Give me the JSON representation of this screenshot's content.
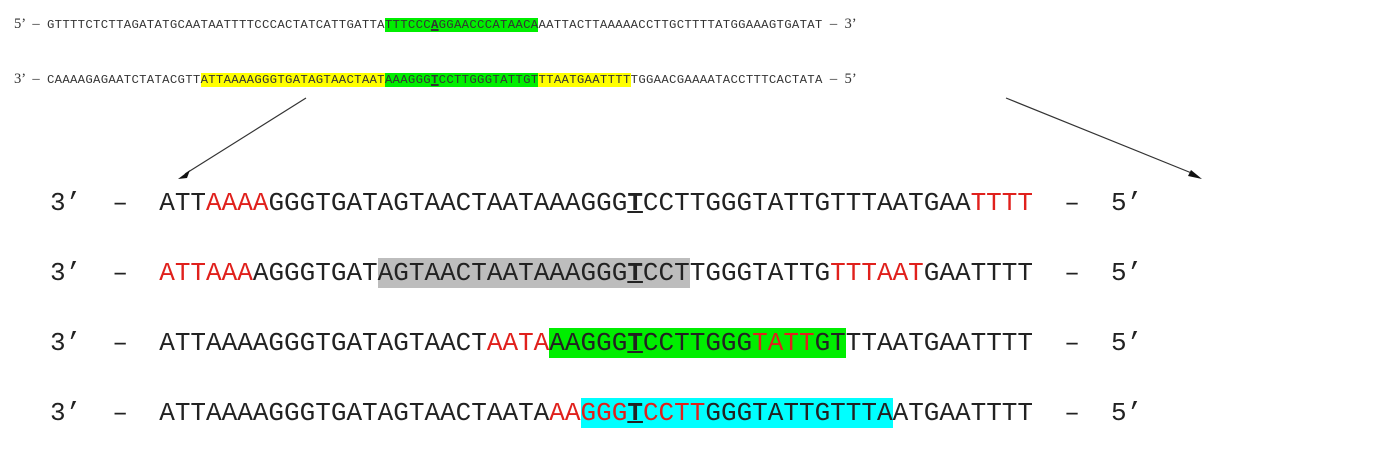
{
  "top_strand": {
    "left_end": "5’  –  ",
    "segments": [
      {
        "text": "GTTTTCTCTTAGATATGCAATAATTTTCCCACTATCATTGATTA",
        "hl": "",
        "mut": false
      },
      {
        "text": "TTTCCC",
        "hl": "green",
        "mut": false
      },
      {
        "text": "A",
        "hl": "green",
        "mut": true
      },
      {
        "text": "GGAACCCATAACA",
        "hl": "green",
        "mut": false
      },
      {
        "text": "AATTACTTAAAAACCTTGCTTTTATGGAAAGTGATAT",
        "hl": "",
        "mut": false
      }
    ],
    "right_end": "  –  3’"
  },
  "bottom_strand": {
    "left_end": "3’  –  ",
    "segments": [
      {
        "text": "CAAAAGAGAATCTATACGTT",
        "hl": "",
        "mut": false
      },
      {
        "text": "ATTAAAAGGGTGATAGTAACTAAT",
        "hl": "yellow",
        "mut": false
      },
      {
        "text": "AAAGGG",
        "hl": "green",
        "mut": false
      },
      {
        "text": "T",
        "hl": "green",
        "mut": true
      },
      {
        "text": "CCTTGGGTATTGT",
        "hl": "green",
        "mut": false
      },
      {
        "text": "TTAATGAATTTT",
        "hl": "yellow",
        "mut": false
      },
      {
        "text": "TGGAACGAAAATACCTTTCACTATA",
        "hl": "",
        "mut": false
      }
    ],
    "right_end": "  –  5’"
  },
  "rows": [
    {
      "left_end": "3’  –  ",
      "right_end": "  –  5’",
      "segments": [
        {
          "text": "ATT",
          "red": false,
          "hl": "",
          "mut": false
        },
        {
          "text": "AAAA",
          "red": true,
          "hl": "",
          "mut": false
        },
        {
          "text": "GGGTGATAGTAACTAATAAAGGG",
          "red": false,
          "hl": "",
          "mut": false
        },
        {
          "text": "T",
          "red": false,
          "hl": "",
          "mut": true
        },
        {
          "text": "CCTTGGGTATTGTTTAATGAA",
          "red": false,
          "hl": "",
          "mut": false
        },
        {
          "text": "TTTT",
          "red": true,
          "hl": "",
          "mut": false
        }
      ]
    },
    {
      "left_end": "3’  –  ",
      "right_end": "  –  5’",
      "segments": [
        {
          "text": "ATTAAA",
          "red": true,
          "hl": "",
          "mut": false
        },
        {
          "text": "AGGGTGAT",
          "red": false,
          "hl": "",
          "mut": false
        },
        {
          "text": "AGTAACTAATAAAGGG",
          "red": false,
          "hl": "grey",
          "mut": false
        },
        {
          "text": "T",
          "red": false,
          "hl": "grey",
          "mut": true
        },
        {
          "text": "CCT",
          "red": false,
          "hl": "grey",
          "mut": false
        },
        {
          "text": "TGGGTATTG",
          "red": false,
          "hl": "",
          "mut": false
        },
        {
          "text": "TTTAAT",
          "red": true,
          "hl": "",
          "mut": false
        },
        {
          "text": "GAATTTT",
          "red": false,
          "hl": "",
          "mut": false
        }
      ]
    },
    {
      "left_end": "3’  –  ",
      "right_end": "  –  5’",
      "segments": [
        {
          "text": "ATTAAAAGGGTGATAGTAACT",
          "red": false,
          "hl": "",
          "mut": false
        },
        {
          "text": "AATA",
          "red": true,
          "hl": "",
          "mut": false
        },
        {
          "text": "AAGGG",
          "red": false,
          "hl": "green",
          "mut": false
        },
        {
          "text": "T",
          "red": false,
          "hl": "green",
          "mut": true
        },
        {
          "text": "CCTTGGG",
          "red": false,
          "hl": "green",
          "mut": false
        },
        {
          "text": "TATT",
          "red": true,
          "hl": "green",
          "mut": false
        },
        {
          "text": "GT",
          "red": false,
          "hl": "green",
          "mut": false
        },
        {
          "text": "TTAATGAATTTT",
          "red": false,
          "hl": "",
          "mut": false
        }
      ]
    },
    {
      "left_end": "3’  –  ",
      "right_end": "  –  5’",
      "segments": [
        {
          "text": "ATTAAAAGGGTGATAGTAACTAATA",
          "red": false,
          "hl": "",
          "mut": false
        },
        {
          "text": "AA",
          "red": true,
          "hl": "",
          "mut": false
        },
        {
          "text": "GGG",
          "red": true,
          "hl": "cyan",
          "mut": false
        },
        {
          "text": "T",
          "red": false,
          "hl": "cyan",
          "mut": true
        },
        {
          "text": "CCTT",
          "red": true,
          "hl": "cyan",
          "mut": false
        },
        {
          "text": "GGGTATTGTTTA",
          "red": false,
          "hl": "cyan",
          "mut": false
        },
        {
          "text": "ATGAATTTT",
          "red": false,
          "hl": "",
          "mut": false
        }
      ]
    }
  ],
  "colors": {
    "red_text": "#e0201c",
    "yellow": "#ffff00",
    "green": "#00ee00",
    "grey": "#bdbdbd",
    "cyan": "#00ffff"
  }
}
